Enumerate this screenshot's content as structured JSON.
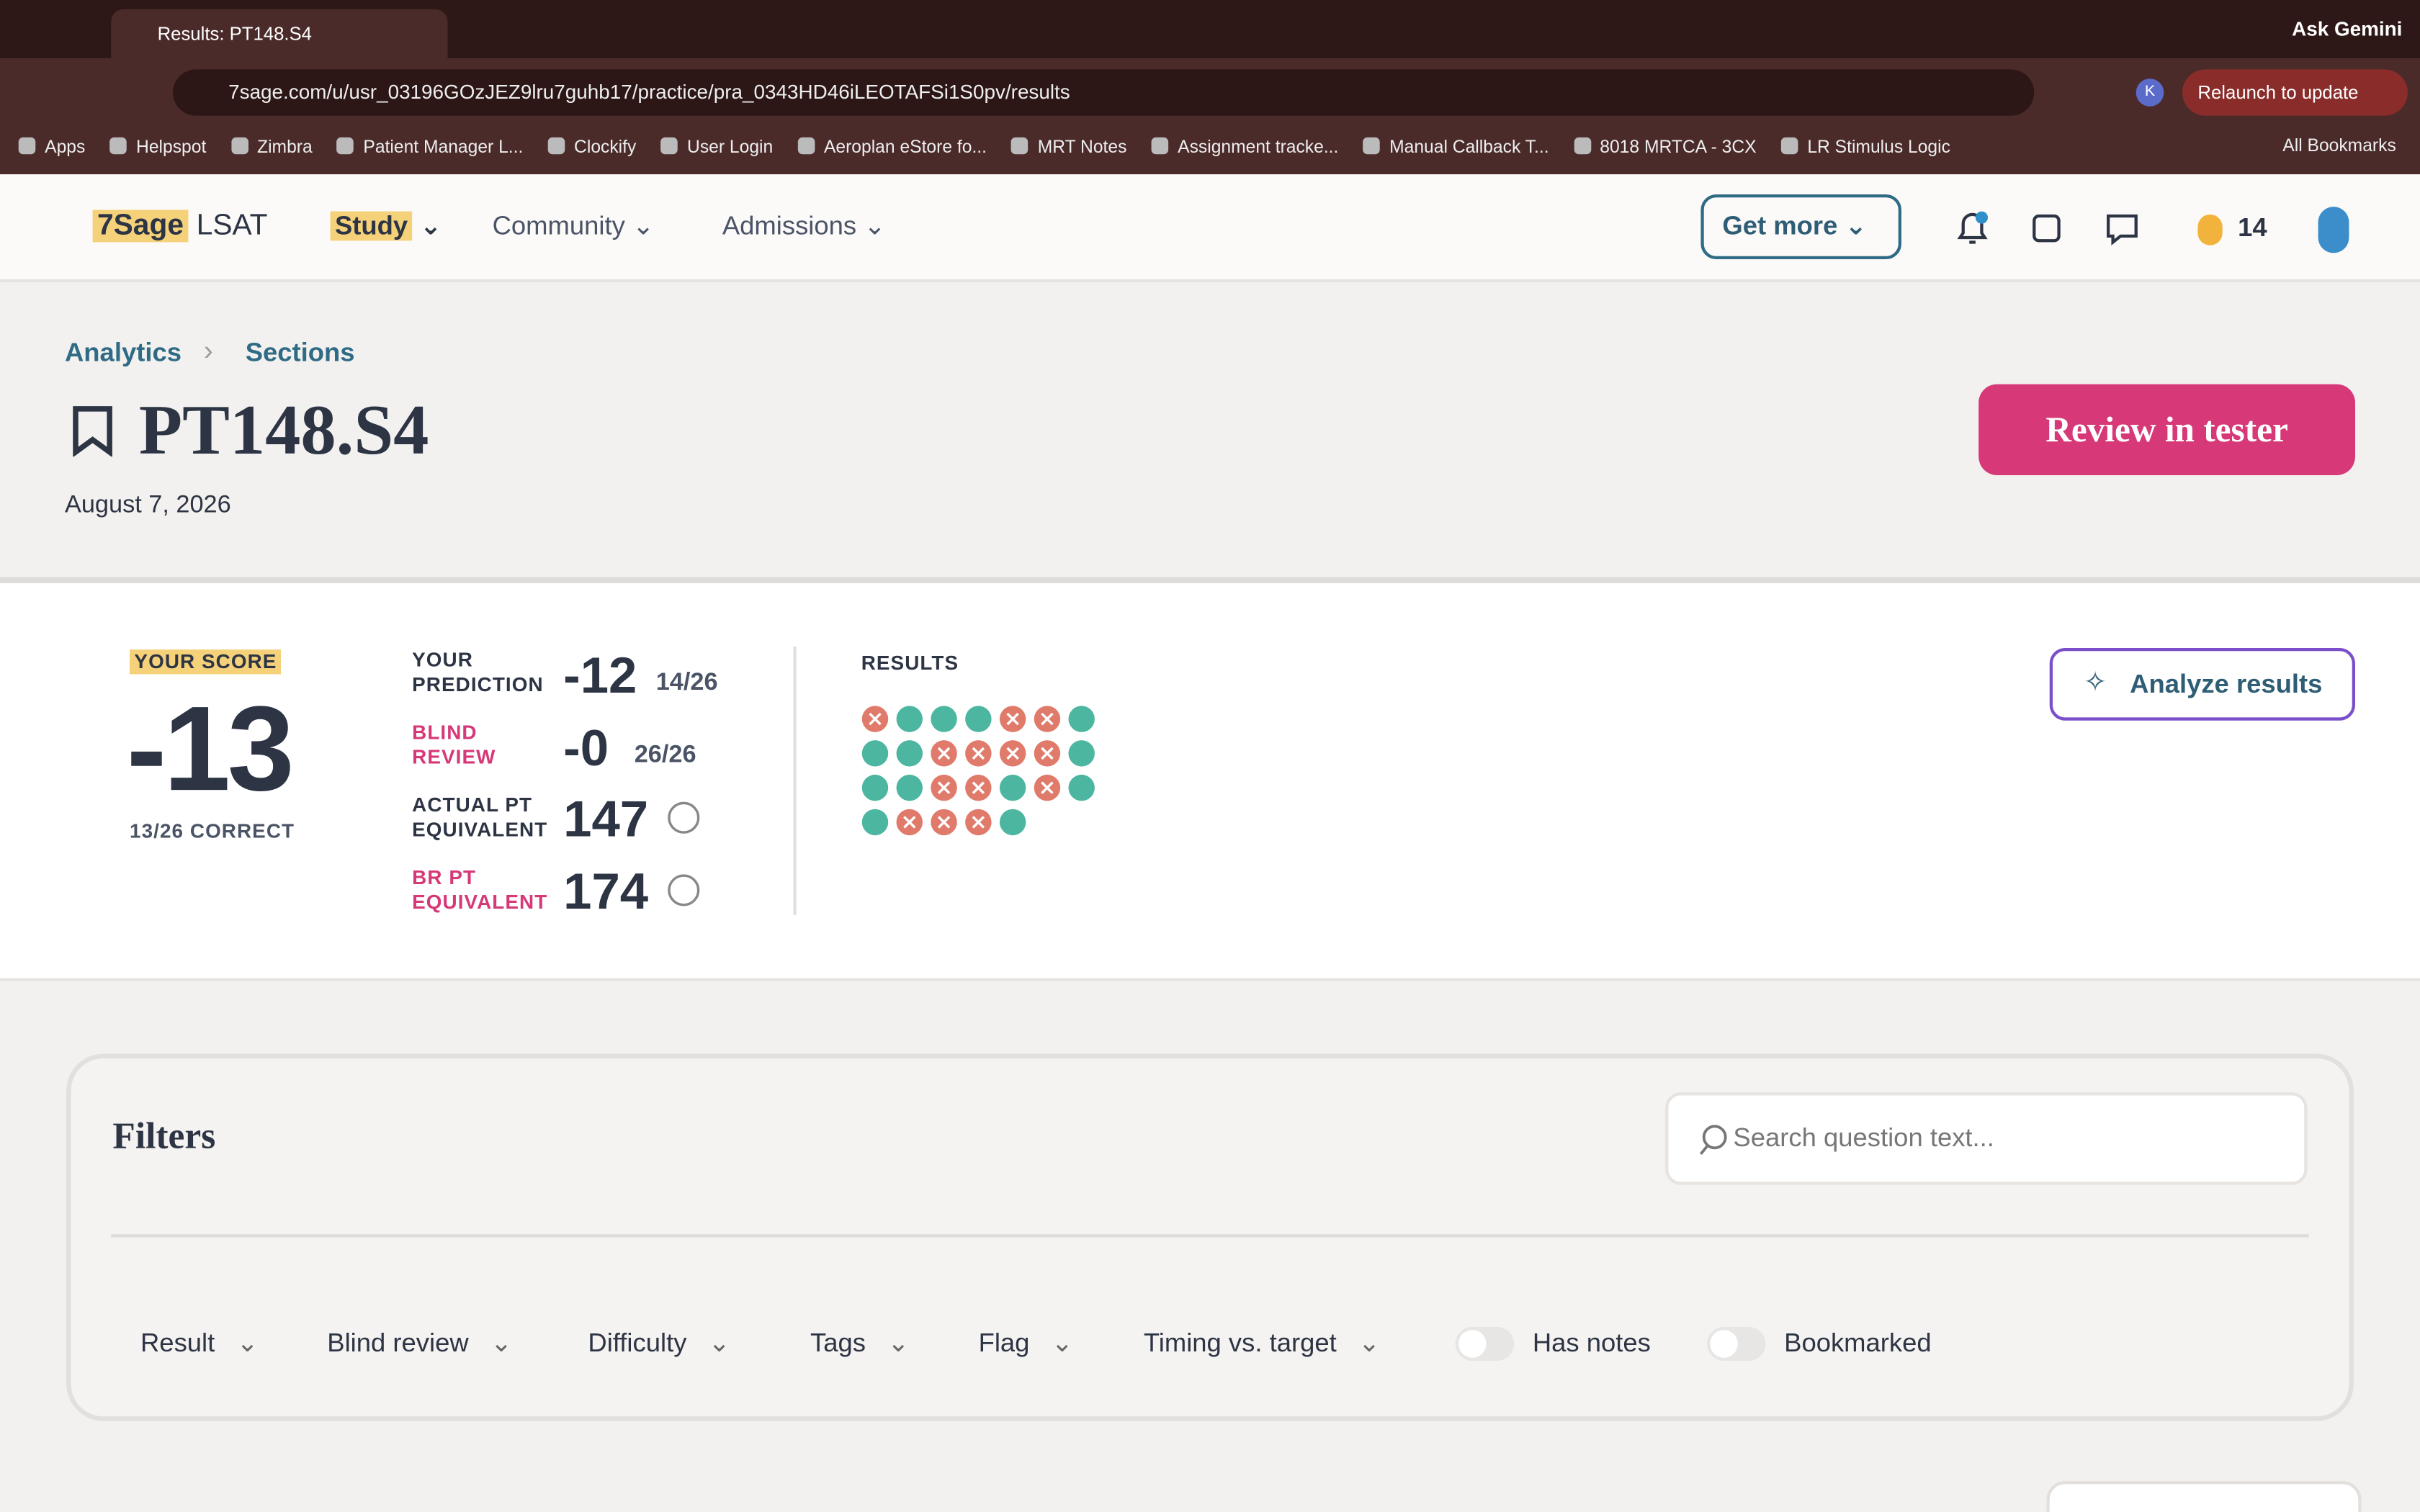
{
  "browser": {
    "tab_title": "Results: PT148.S4",
    "ask": "Ask Gemini",
    "url": "7sage.com/u/usr_03196GOzJEZ9lru7guhb17/practice/pra_0343HD46iLEOTAFSi1S0pv/results",
    "profile": "K",
    "relaunch": "Relaunch to update",
    "bookmarks": [
      "Apps",
      "Helpspot",
      "Zimbra",
      "Patient Manager L...",
      "Clockify",
      "User Login",
      "Aeroplan eStore fo...",
      "MRT Notes",
      "Assignment tracke...",
      "Manual Callback T...",
      "8018 MRTCA - 3CX",
      "LR Stimulus Logic"
    ],
    "all_bookmarks": "All Bookmarks"
  },
  "nav": {
    "logo": "7Sage",
    "logo_suffix": "LSAT",
    "menu": [
      "Study",
      "Community",
      "Admissions"
    ],
    "get_more": "Get more",
    "streak": 14
  },
  "header": {
    "breadcrumbs": [
      "Analytics",
      "Sections"
    ],
    "title": "PT148.S4",
    "date": "August 7, 2026",
    "review_button": "Review in tester"
  },
  "score": {
    "label": "YOUR SCORE",
    "value": "-13",
    "correct": "13/26 CORRECT",
    "rows": [
      {
        "label": "YOUR PREDICTION",
        "value": "-12",
        "detail": "14/26"
      },
      {
        "label": "BLIND REVIEW",
        "value": "-0",
        "detail": "26/26"
      },
      {
        "label": "ACTUAL PT EQUIVALENT",
        "value": "147"
      },
      {
        "label": "BR PT EQUIVALENT",
        "value": "174"
      }
    ]
  },
  "results": {
    "title": "RESULTS",
    "correct": [
      false,
      true,
      true,
      true,
      false,
      false,
      true,
      true,
      true,
      false,
      false,
      false,
      false,
      true,
      true,
      true,
      false,
      false,
      true,
      false,
      true,
      true,
      false,
      false,
      false,
      true
    ]
  },
  "analyze": "Analyze results",
  "filters": {
    "title": "Filters",
    "search_placeholder": "Search question text...",
    "dropdowns": [
      "Result",
      "Blind review",
      "Difficulty",
      "Tags",
      "Flag",
      "Timing vs. target"
    ],
    "toggles": [
      "Has notes",
      "Bookmarked"
    ]
  }
}
